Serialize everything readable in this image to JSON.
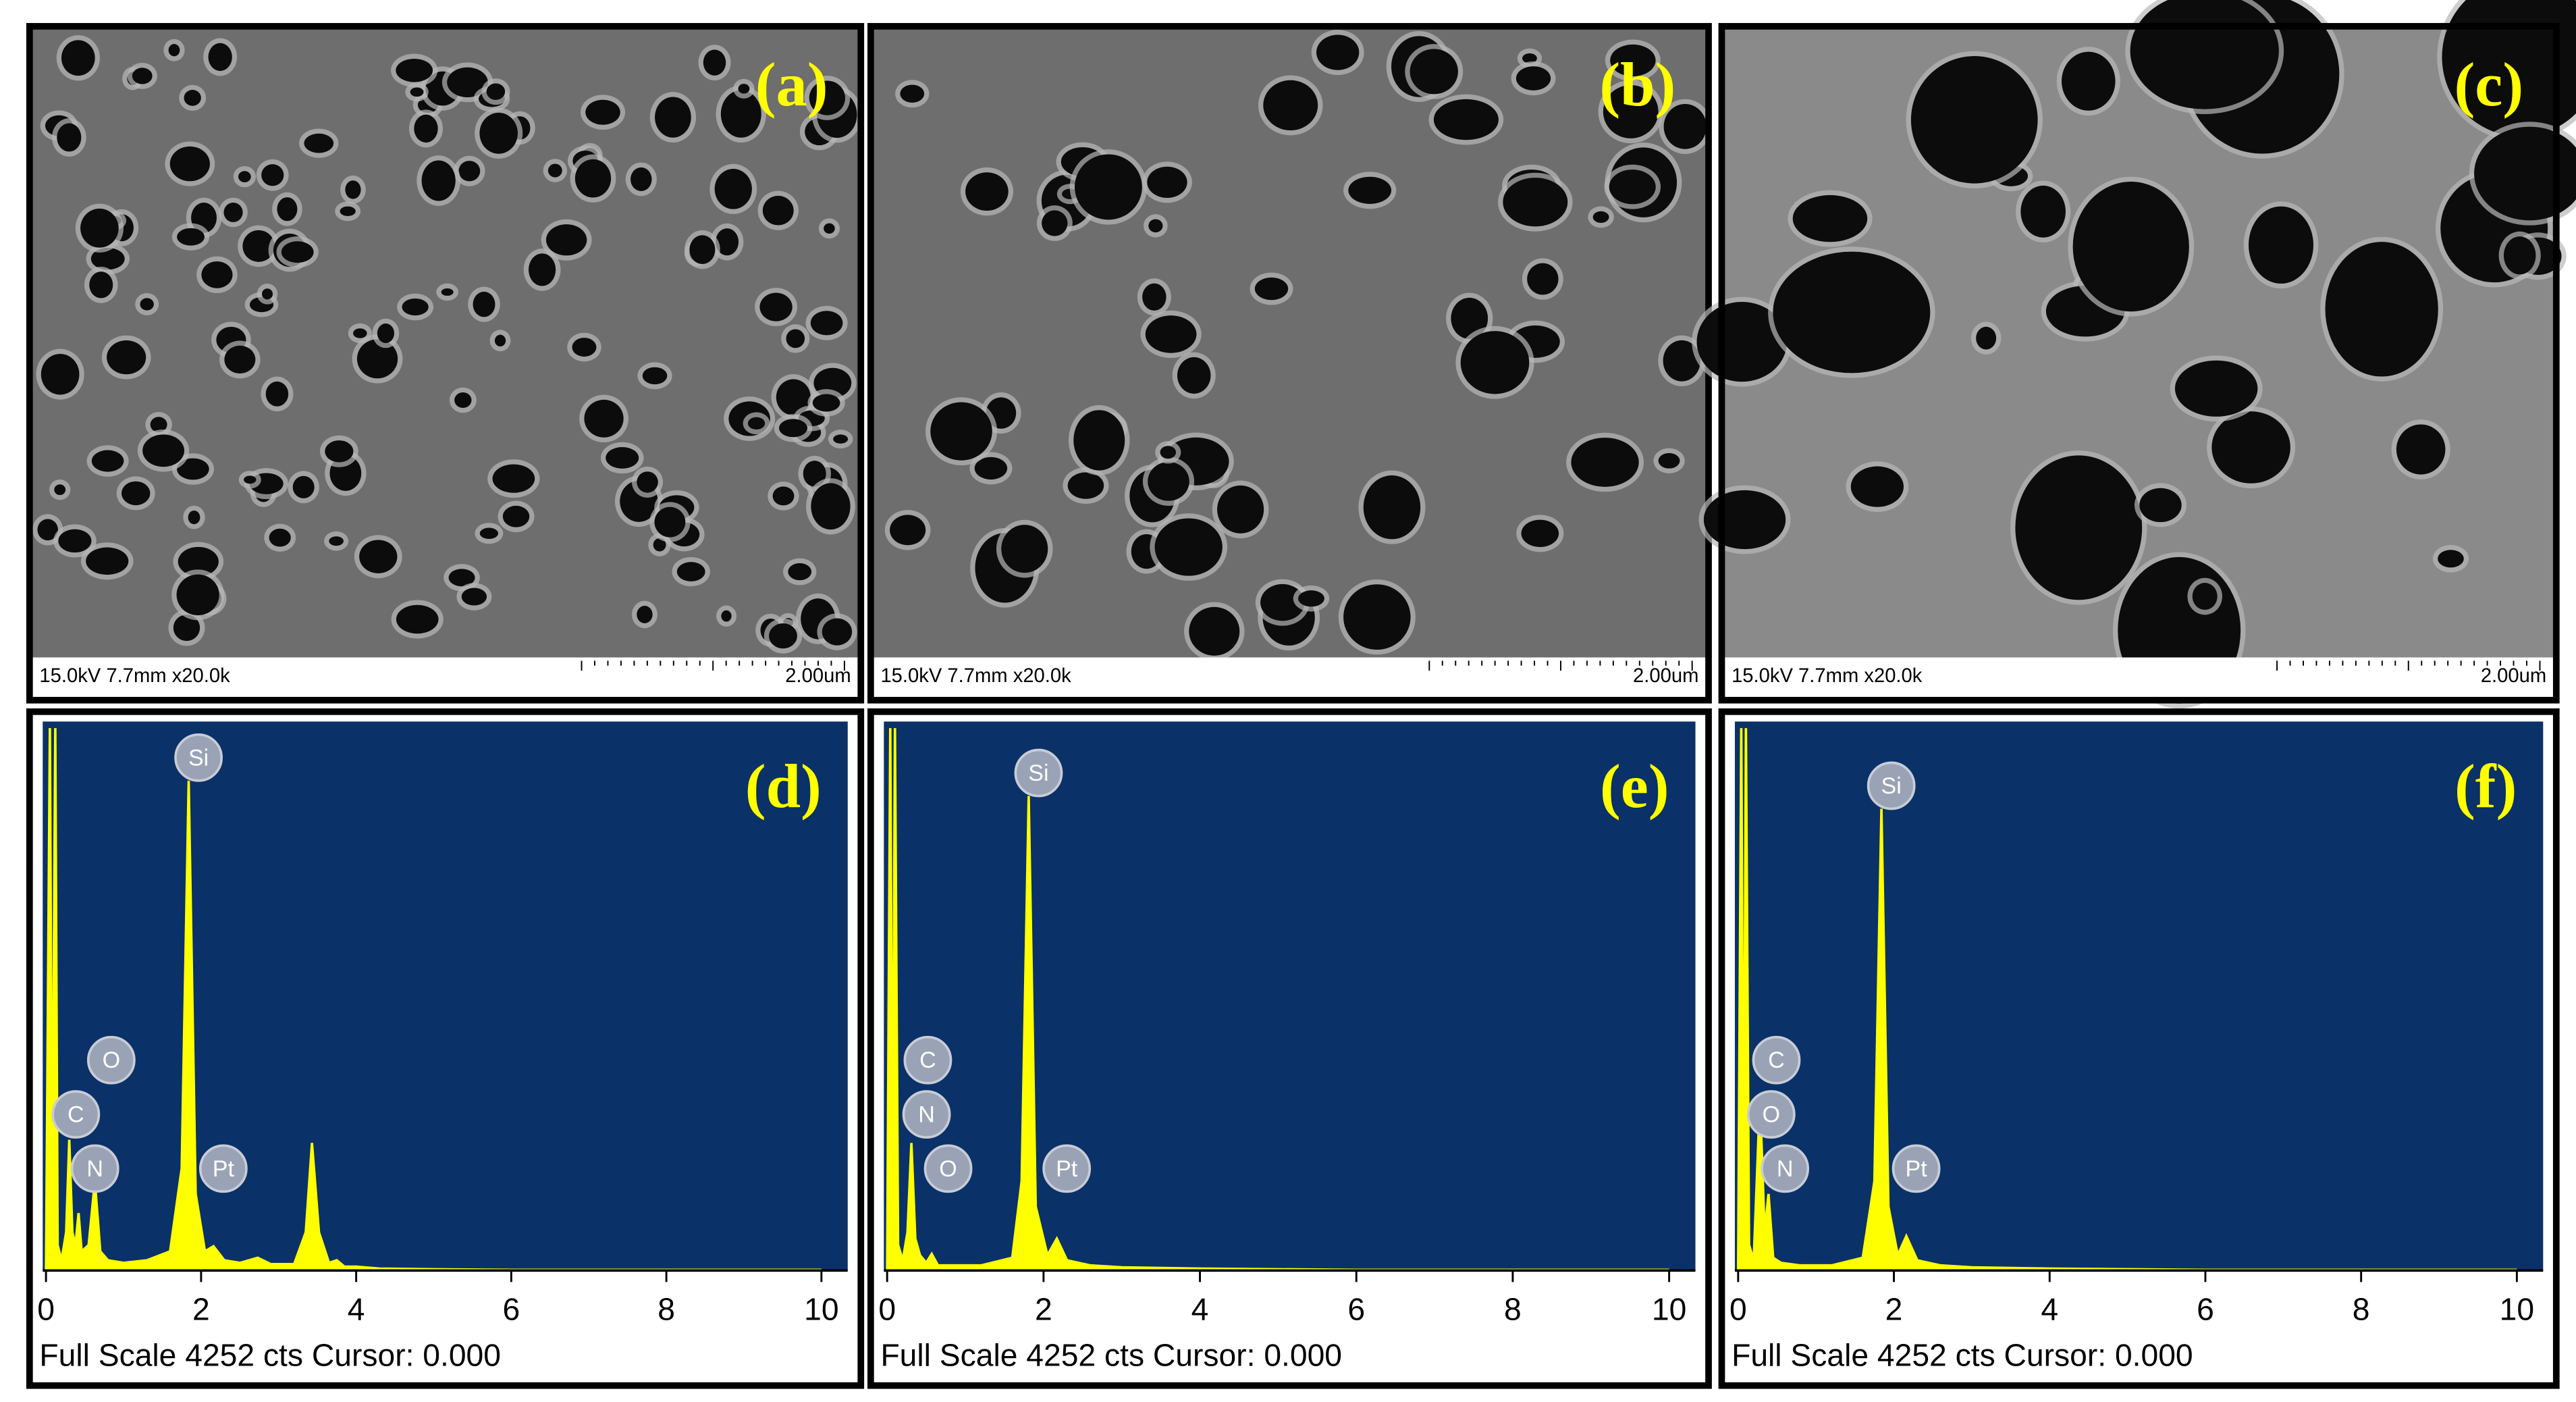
{
  "sem_panels": [
    {
      "label": "(a)",
      "info": "15.0kV 7.7mm x20.0k",
      "scale_bar": "2.00um"
    },
    {
      "label": "(b)",
      "info": "15.0kV 7.7mm x20.0k",
      "scale_bar": "2.00um"
    },
    {
      "label": "(c)",
      "info": "15.0kV 7.7mm x20.0k",
      "scale_bar": "2.00um"
    }
  ],
  "chart_data": [
    {
      "type": "spectrum",
      "panel_label": "(d)",
      "footer": "Full Scale 4252 cts Cursor: 0.000",
      "color": "#ffff00",
      "xlim": [
        0,
        10
      ],
      "xticks": [
        0,
        2,
        4,
        6,
        8,
        10
      ],
      "ylim": [
        0,
        4252
      ],
      "x": [
        0,
        0.05,
        0.08,
        0.12,
        0.15,
        0.2,
        0.26,
        0.3,
        0.34,
        0.38,
        0.42,
        0.46,
        0.55,
        0.63,
        0.7,
        0.8,
        1.0,
        1.3,
        1.6,
        1.75,
        1.84,
        1.93,
        2.05,
        2.16,
        2.3,
        2.5,
        2.73,
        2.9,
        3.2,
        3.35,
        3.43,
        3.52,
        3.65,
        3.75,
        3.85,
        4.0,
        4.3,
        5,
        6,
        8,
        10
      ],
      "values": [
        0,
        4252,
        300,
        4252,
        200,
        80,
        300,
        1025,
        300,
        200,
        450,
        150,
        200,
        700,
        150,
        80,
        60,
        80,
        150,
        800,
        3840,
        600,
        150,
        190,
        80,
        60,
        100,
        50,
        50,
        300,
        1000,
        300,
        60,
        80,
        30,
        30,
        15,
        10,
        5,
        5,
        5
      ],
      "peak_labels": [
        {
          "text": "Si",
          "x": 1.84
        },
        {
          "text": "O",
          "x": 0.63
        },
        {
          "text": "C",
          "x": 0.3
        },
        {
          "text": "N",
          "x": 0.42
        },
        {
          "text": "Pt",
          "x": 2.16
        }
      ]
    },
    {
      "type": "spectrum",
      "panel_label": "(e)",
      "footer": "Full Scale 4252 cts Cursor: 0.000",
      "color": "#ffff00",
      "xlim": [
        0,
        10
      ],
      "xticks": [
        0,
        2,
        4,
        6,
        8,
        10
      ],
      "ylim": [
        0,
        4252
      ],
      "x": [
        0,
        0.04,
        0.07,
        0.1,
        0.14,
        0.2,
        0.26,
        0.31,
        0.36,
        0.42,
        0.5,
        0.57,
        0.65,
        0.8,
        1.2,
        1.6,
        1.72,
        1.81,
        1.9,
        2.05,
        2.17,
        2.3,
        2.6,
        3,
        4,
        6,
        8,
        10
      ],
      "values": [
        0,
        4252,
        300,
        4252,
        200,
        80,
        300,
        1000,
        250,
        120,
        60,
        130,
        40,
        40,
        40,
        100,
        700,
        3720,
        500,
        120,
        250,
        80,
        40,
        25,
        15,
        5,
        5,
        5
      ],
      "peak_labels": [
        {
          "text": "Si",
          "x": 1.81
        },
        {
          "text": "C",
          "x": 0.31
        },
        {
          "text": "N",
          "x": 0.42
        },
        {
          "text": "O",
          "x": 0.57
        },
        {
          "text": "Pt",
          "x": 2.17
        }
      ]
    },
    {
      "type": "spectrum",
      "panel_label": "(f)",
      "footer": "Full Scale 4252 cts Cursor: 0.000",
      "color": "#ffff00",
      "xlim": [
        0,
        10
      ],
      "xticks": [
        0,
        2,
        4,
        6,
        8,
        10
      ],
      "ylim": [
        0,
        4252
      ],
      "x": [
        0,
        0.04,
        0.07,
        0.1,
        0.14,
        0.2,
        0.28,
        0.34,
        0.39,
        0.45,
        0.55,
        0.8,
        1.2,
        1.6,
        1.75,
        1.84,
        1.93,
        2.05,
        2.16,
        2.3,
        2.6,
        3,
        4,
        6,
        8,
        10
      ],
      "values": [
        0,
        4252,
        300,
        4252,
        200,
        80,
        1350,
        300,
        600,
        100,
        60,
        40,
        40,
        100,
        700,
        3620,
        500,
        120,
        270,
        80,
        40,
        25,
        15,
        5,
        5,
        5
      ],
      "peak_labels": [
        {
          "text": "Si",
          "x": 1.84
        },
        {
          "text": "C",
          "x": 0.28
        },
        {
          "text": "O",
          "x": 0.34
        },
        {
          "text": "N",
          "x": 0.39
        },
        {
          "text": "Pt",
          "x": 2.16
        }
      ]
    }
  ]
}
